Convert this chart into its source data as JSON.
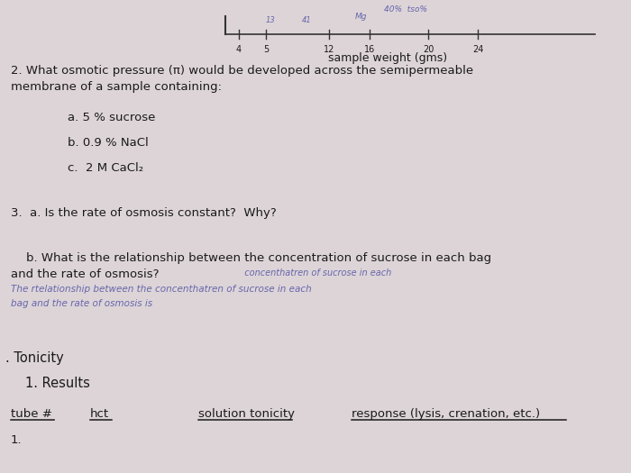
{
  "bg_color": "#ddd4d8",
  "top_axis_label": "sample weight (gms)",
  "top_axis_ticks": [
    "4",
    "5",
    "12",
    "16",
    "20",
    "24"
  ],
  "q2_header_1": "2. What osmotic pressure (π) would be developed across the semipermeable",
  "q2_header_2": "membrane of a sample containing:",
  "q2a": "a. 5 % sucrose",
  "q2b": "b. 0.9 % NaCl",
  "q2c": "c.  2 M CaCl₂",
  "q3a": "3.  a. Is the rate of osmosis constant?  Why?",
  "q3b_1": "    b. What is the relationship between the concentration of sucrose in each bag",
  "q3b_2": "and the rate of osmosis?",
  "q3b_hw1": "The rtelationship between the concenthatren of sucrose in each",
  "q3b_hw2": "bag and the rate of osmosis is",
  "q3b_hw3": "                                   concenthatren of sucrose in each",
  "tonicity_header": ". Tonicity",
  "results_header": "1. Results",
  "table_col1": "tube #",
  "table_col2": "hct",
  "table_col3": "solution tonicity",
  "table_col4": "response (lysis, crenation, etc.)",
  "table_row1": "1.",
  "printed_color": "#1a1a1a",
  "handwritten_color": "#6666aa",
  "underline_color": "#1a1a1a",
  "axis_color": "#333333"
}
